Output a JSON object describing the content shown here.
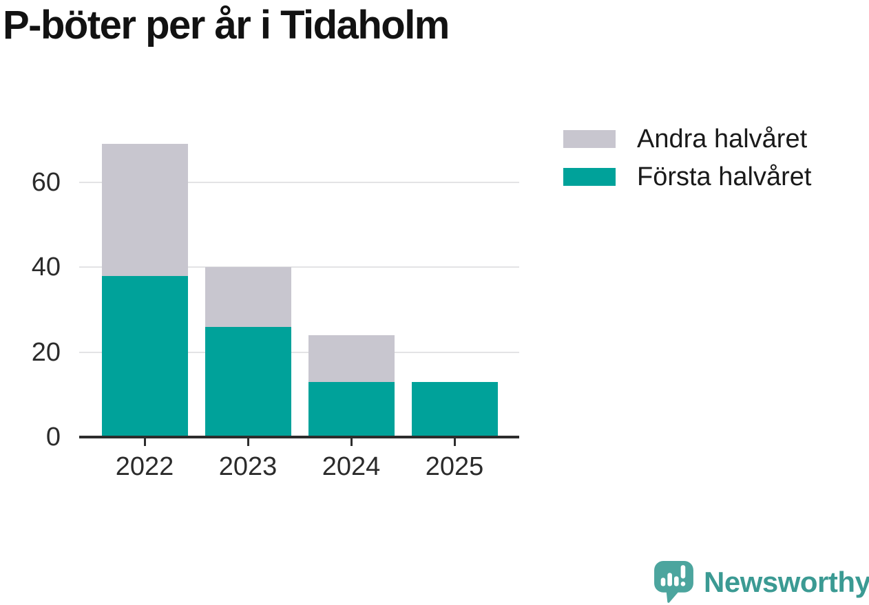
{
  "title": "P-böter per år i Tidaholm",
  "colors": {
    "first_half": "#00a29a",
    "second_half": "#c8c6cf",
    "gridline": "#e3e3e5",
    "axis": "#2d2d2d",
    "tick_label": "#2b2b2b",
    "title_text": "#121212",
    "brand_icon": "#4ca59e",
    "brand_text": "#3b9a93",
    "background": "#ffffff"
  },
  "chart_data": {
    "type": "bar",
    "stacked": true,
    "title": "P-böter per år i Tidaholm",
    "categories": [
      "2022",
      "2023",
      "2024",
      "2025"
    ],
    "series": [
      {
        "name": "Första halvåret",
        "color": "#00a29a",
        "values": [
          38,
          26,
          13,
          13
        ]
      },
      {
        "name": "Andra halvåret",
        "color": "#c8c6cf",
        "values": [
          31,
          14,
          11,
          0
        ]
      }
    ],
    "totals": [
      69,
      40,
      24,
      13
    ],
    "xlabel": "",
    "ylabel": "",
    "yticks": [
      0,
      20,
      40,
      60
    ],
    "ylim": [
      0,
      70.5
    ],
    "grid": "horizontal",
    "legend_position": "top-right"
  },
  "legend": {
    "items": [
      {
        "label": "Andra halvåret",
        "color": "#c8c6cf"
      },
      {
        "label": "Första halvåret",
        "color": "#00a29a"
      }
    ]
  },
  "footer": {
    "brand_name": "Newsworthy"
  }
}
